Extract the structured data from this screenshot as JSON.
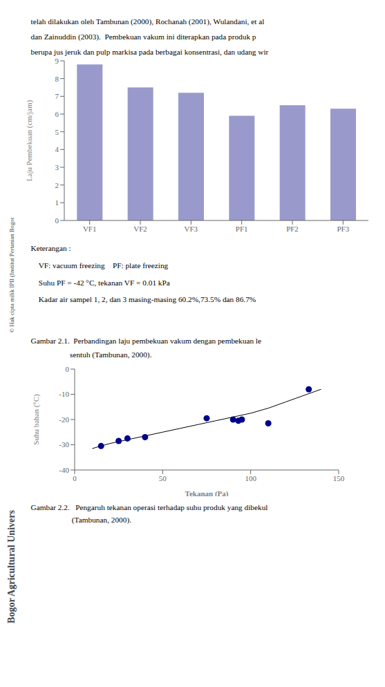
{
  "chart_data": [
    {
      "type": "bar",
      "categories": [
        "VF1",
        "VF2",
        "VF3",
        "PF1",
        "PF2",
        "PF3"
      ],
      "values": [
        8.8,
        7.5,
        7.2,
        5.9,
        6.5,
        6.3
      ],
      "color": "#9999cc",
      "ylabel": "Laju Pembekuan (cm/jam)",
      "ylim": [
        0,
        9
      ],
      "yticks": [
        0,
        1,
        2,
        3,
        4,
        5,
        6,
        7,
        8,
        9
      ],
      "grid": false,
      "annotations": [
        "telah dilakukan oleh Tambunan (2000), Rochanah (2001), Wulandani, et al",
        "dan Zainuddin (2003).  Pembekuan vakum ini diterapkan pada produk p",
        "berupa jus jeruk dan pulp markisa pada berbagai konsentrasi, dan udang wir",
        "Keterangan :",
        "    VF: vacuum freezing    PF: plate freezing",
        "    Suhu PF = -42 °C, tekanan VF = 0.01 kPa",
        "    Kadar air sampel 1, 2, dan 3 masing-masing 60.2%,73.5% dan 86.7%",
        "Gambar 2.1.  Perbandingan laju pembekuan vakum dengan pembekuan le",
        "                    sentuh (Tambunan, 2000).",
        "© Hak cipta milik IPB (Institut Pertanian Bogor"
      ]
    },
    {
      "type": "scatter",
      "xlabel": "Tekanan (Pa)",
      "ylabel": "Suhu bahan (°C)",
      "xlim": [
        0,
        150
      ],
      "ylim": [
        -40,
        0
      ],
      "xticks": [
        0,
        50,
        100,
        150
      ],
      "yticks": [
        0,
        -10,
        -20,
        -30,
        -40
      ],
      "grid": false,
      "series": [
        {
          "type": "scatter",
          "color": "#00008B",
          "x": [
            15,
            25,
            30,
            40,
            75,
            90,
            93,
            95,
            110,
            133
          ],
          "values": [
            -30.5,
            -28.5,
            -27.5,
            -27.0,
            -19.5,
            -20.0,
            -20.5,
            -20.0,
            -21.5,
            -8.0
          ]
        },
        {
          "type": "line",
          "color": "#000000",
          "x": [
            10,
            20,
            30,
            40,
            50,
            60,
            70,
            80,
            90,
            100,
            110,
            120,
            130,
            140
          ],
          "values": [
            -31.5,
            -29.5,
            -28.0,
            -26.5,
            -25.0,
            -23.5,
            -22.0,
            -20.5,
            -19.0,
            -17.5,
            -15.5,
            -13.0,
            -10.5,
            -8.0
          ]
        }
      ],
      "annotations": [
        "Gambar 2.2.   Pengaruh tekanan operasi terhadap suhu produk yang dibekul",
        "                     (Tambunan, 2000).",
        "Bogor Agricultural Univers"
      ]
    }
  ]
}
